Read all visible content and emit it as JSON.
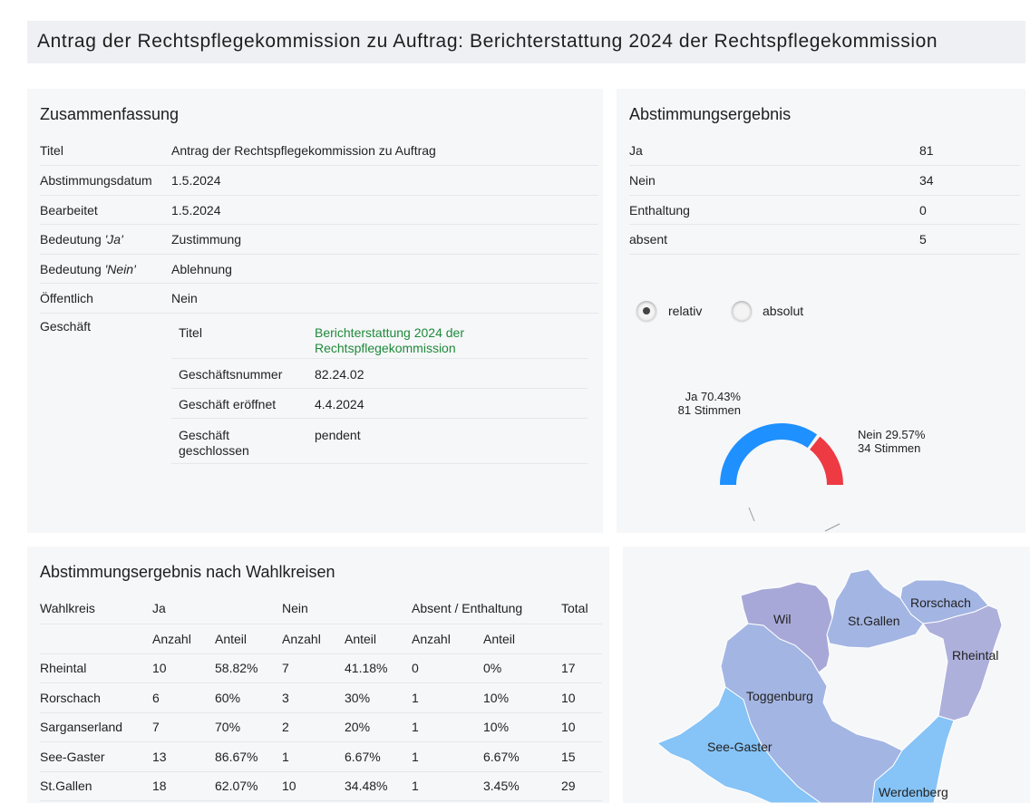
{
  "page": {
    "title": "Antrag der Rechtspflegekommission zu Auftrag: Berichterstattung 2024 der Rechtspflegekommission"
  },
  "summary": {
    "heading": "Zusammenfassung",
    "rows": [
      {
        "label": "Titel",
        "value": "Antrag der Rechtspflegekommission zu Auftrag"
      },
      {
        "label": "Abstimmungsdatum",
        "value": "1.5.2024"
      },
      {
        "label": "Bearbeitet",
        "value": "1.5.2024"
      },
      {
        "label_prefix": "Bedeutung ",
        "label_em": "'Ja'",
        "value": "Zustimmung"
      },
      {
        "label_prefix": "Bedeutung ",
        "label_em": "'Nein'",
        "value": "Ablehnung"
      },
      {
        "label": "Öffentlich",
        "value": "Nein"
      }
    ],
    "geschaeft": {
      "label": "Geschäft",
      "rows": [
        {
          "label": "Titel",
          "value": "Berichterstattung 2024 der Rechtspflegekommission",
          "link": true
        },
        {
          "label": "Geschäftsnummer",
          "value": "82.24.02"
        },
        {
          "label": "Geschäft eröffnet",
          "value": "4.4.2024"
        },
        {
          "label": "Geschäft geschlossen",
          "value": "pendent"
        }
      ]
    }
  },
  "result": {
    "heading": "Abstimmungsergebnis",
    "rows": [
      {
        "label": "Ja",
        "value": "81"
      },
      {
        "label": "Nein",
        "value": "34"
      },
      {
        "label": "Enthaltung",
        "value": "0"
      },
      {
        "label": "absent",
        "value": "5"
      }
    ],
    "toggle": {
      "options": [
        "relativ",
        "absolut"
      ],
      "selected": "relativ"
    },
    "chart_data": {
      "type": "pie",
      "subtype": "semi-donut",
      "slices": [
        {
          "name": "Ja",
          "percent": 70.43,
          "votes": 81,
          "color": "#1e90ff",
          "label_line1": "Ja 70.43%",
          "label_line2": "81 Stimmen"
        },
        {
          "name": "Nein",
          "percent": 29.57,
          "votes": 34,
          "color": "#ee3a43",
          "label_line1": "Nein 29.57%",
          "label_line2": "34 Stimmen"
        }
      ]
    }
  },
  "wahlkreise": {
    "heading": "Abstimmungsergebnis nach Wahlkreisen",
    "header_top": [
      "Wahlkreis",
      "Ja",
      "Nein",
      "Absent / Enthaltung",
      "Total"
    ],
    "header_sub": [
      "Anzahl",
      "Anteil",
      "Anzahl",
      "Anteil",
      "Anzahl",
      "Anteil"
    ],
    "rows": [
      [
        "Rheintal",
        "10",
        "58.82%",
        "7",
        "41.18%",
        "0",
        "0%",
        "17"
      ],
      [
        "Rorschach",
        "6",
        "60%",
        "3",
        "30%",
        "1",
        "10%",
        "10"
      ],
      [
        "Sarganserland",
        "7",
        "70%",
        "2",
        "20%",
        "1",
        "10%",
        "10"
      ],
      [
        "See-Gaster",
        "13",
        "86.67%",
        "1",
        "6.67%",
        "1",
        "6.67%",
        "15"
      ],
      [
        "St.Gallen",
        "18",
        "62.07%",
        "10",
        "34.48%",
        "1",
        "3.45%",
        "29"
      ]
    ]
  },
  "map": {
    "regions": [
      {
        "name": "Wil",
        "color": "#a8a8d8"
      },
      {
        "name": "St.Gallen",
        "color": "#a3b5e3"
      },
      {
        "name": "Rorschach",
        "color": "#a3b5e3"
      },
      {
        "name": "Rheintal",
        "color": "#aeb0dc"
      },
      {
        "name": "Toggenburg",
        "color": "#a3b5e3"
      },
      {
        "name": "See-Gaster",
        "color": "#86c3f6"
      },
      {
        "name": "Werdenberg",
        "color": "#86c3f6"
      }
    ]
  }
}
